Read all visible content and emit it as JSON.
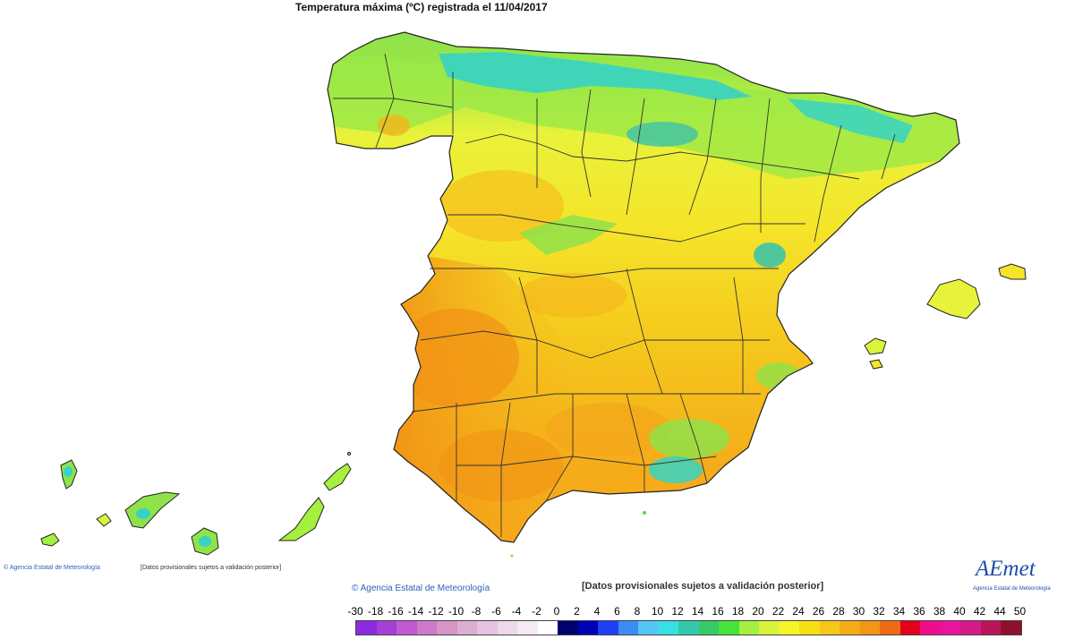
{
  "title": "Temperatura máxima (ºC) registrada el 11/04/2017",
  "footer": {
    "small_credit": "Agencia Estatal de Meteorología",
    "small_note": "[Datos provisionales sujetos a validación posterior]",
    "credit": "Agencia Estatal de Meteorología",
    "note": "[Datos provisionales sujetos a validación posterior]"
  },
  "logo": {
    "text": "AEmet",
    "subtitle": "Agencia Estatal de Meteorología"
  },
  "legend": {
    "labels": [
      "-30",
      "-18",
      "-16",
      "-14",
      "-12",
      "-10",
      "-8",
      "-6",
      "-4",
      "-2",
      "0",
      "2",
      "4",
      "6",
      "8",
      "10",
      "12",
      "14",
      "16",
      "18",
      "20",
      "22",
      "24",
      "26",
      "28",
      "30",
      "32",
      "34",
      "36",
      "38",
      "40",
      "42",
      "44",
      "50"
    ],
    "colors": [
      "#8a2be2",
      "#a63fd6",
      "#c05ad0",
      "#cf79cc",
      "#d595c6",
      "#dcaed3",
      "#e3c3de",
      "#ecd9ea",
      "#f3eaf3",
      "#ffffff",
      "#02006e",
      "#0000b4",
      "#1f3ff5",
      "#3c8cf7",
      "#52c7f5",
      "#37e0e2",
      "#33c9ad",
      "#36cb67",
      "#45e43a",
      "#a6f03f",
      "#dbf43a",
      "#f7f52a",
      "#f6e015",
      "#f7c71a",
      "#f5ac14",
      "#f49516",
      "#f06a12",
      "#e3001b",
      "#ee0e8a",
      "#e8149e",
      "#d41a86",
      "#b81659",
      "#8e102c"
    ]
  },
  "map": {
    "region": "Spain",
    "colors": {
      "north_coast": "#36d3c4",
      "north": "#8fe24a",
      "center": "#f5e52a",
      "south": "#f5ac1a",
      "southwest": "#f19216",
      "mountains": "#3fc3a8"
    }
  }
}
